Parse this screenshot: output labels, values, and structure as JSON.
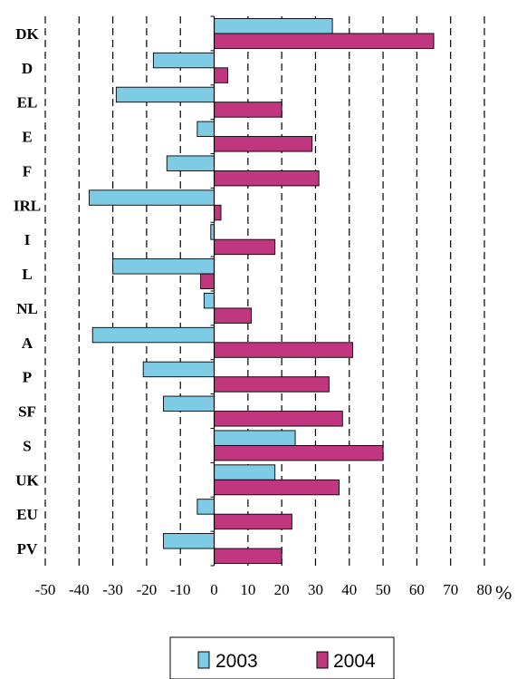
{
  "chart_data": {
    "type": "bar",
    "orientation": "horizontal",
    "categories": [
      "DK",
      "D",
      "EL",
      "E",
      "F",
      "IRL",
      "I",
      "L",
      "NL",
      "A",
      "P",
      "SF",
      "S",
      "UK",
      "EU",
      "PV"
    ],
    "series": [
      {
        "name": "2003",
        "color": "#7ecbe6",
        "values": [
          35,
          -18,
          -29,
          -5,
          -14,
          -37,
          -1,
          -30,
          -3,
          -36,
          -21,
          -15,
          24,
          18,
          -5,
          -15
        ]
      },
      {
        "name": "2004",
        "color": "#c0367f",
        "values": [
          65,
          4,
          20,
          29,
          31,
          2,
          18,
          -4,
          11,
          41,
          34,
          38,
          50,
          37,
          23,
          20
        ]
      }
    ],
    "xlim": [
      -50,
      80
    ],
    "xticks": [
      "-50",
      "-40",
      "-30",
      "-20",
      "-10",
      "0",
      "10",
      "20",
      "30",
      "40",
      "50",
      "60",
      "70",
      "80"
    ],
    "unit": "%",
    "grid": "vertical dashed",
    "legend_position": "bottom"
  }
}
